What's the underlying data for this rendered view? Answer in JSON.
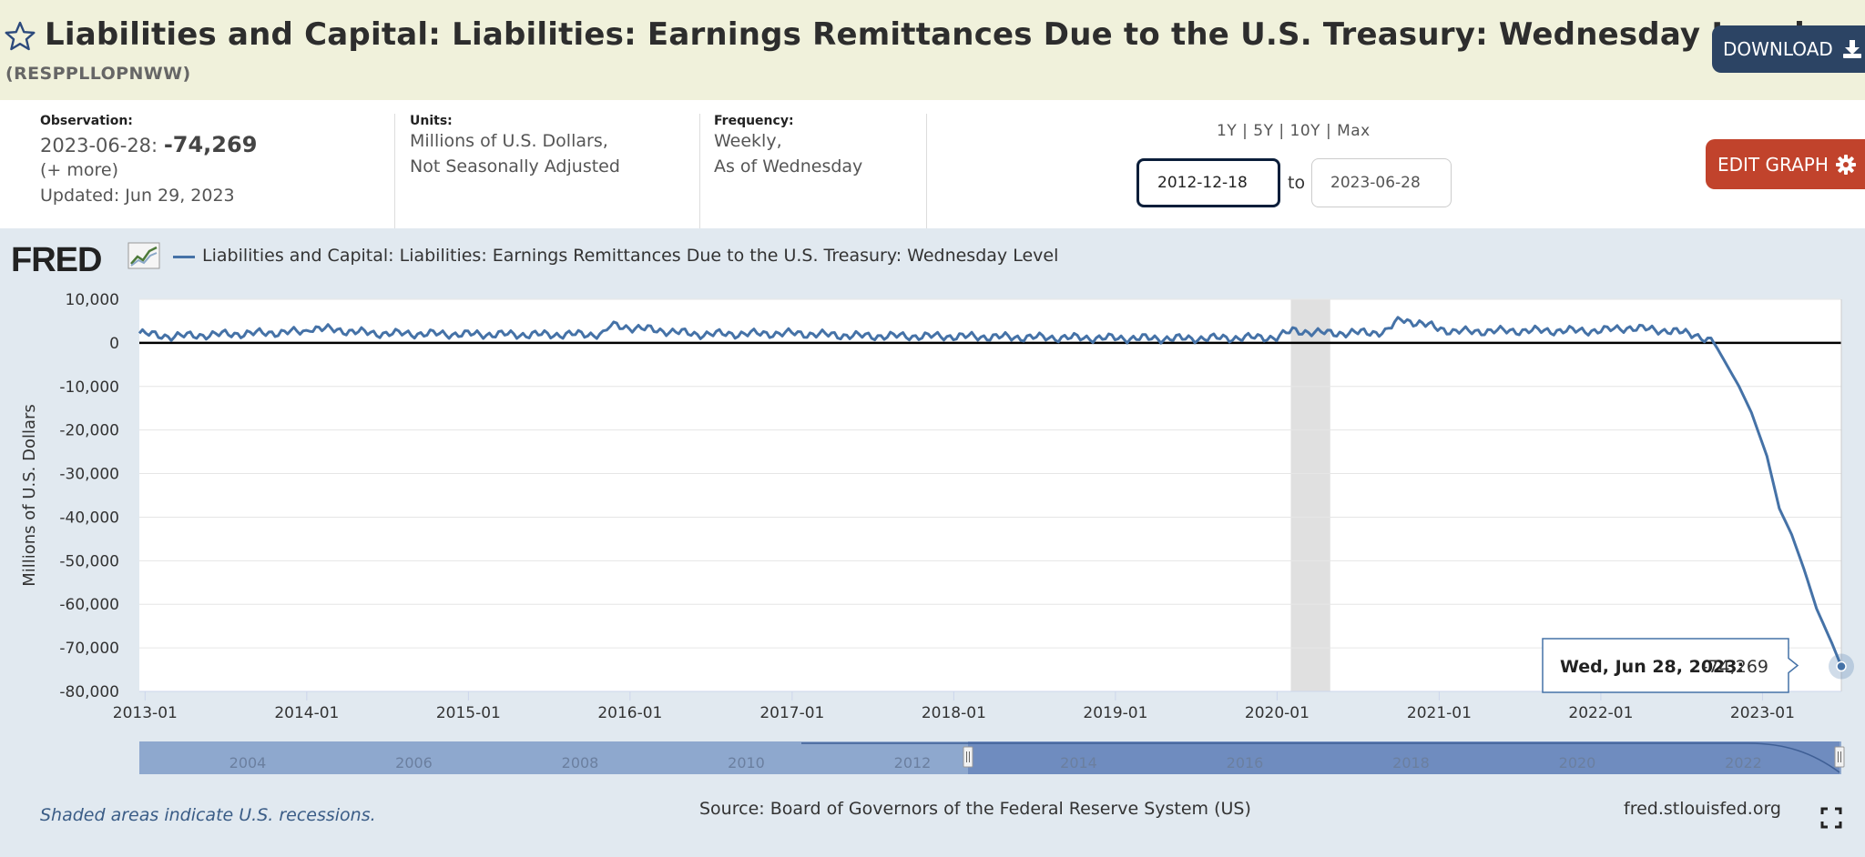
{
  "header": {
    "title": "Liabilities and Capital: Liabilities: Earnings Remittances Due to the U.S. Treasury: Wednesday Level",
    "series_id": "(RESPPLLOPNWW)",
    "download_label": "DOWNLOAD",
    "star_icon": "star-outline-icon",
    "download_icon": "download-icon"
  },
  "meta": {
    "observation_label": "Observation:",
    "observation_date": "2023-06-28:",
    "observation_value": "-74,269",
    "more_link": "(+ more)",
    "updated": "Updated: Jun 29, 2023",
    "units_label": "Units:",
    "units_line1": "Millions of U.S. Dollars,",
    "units_line2": "Not Seasonally Adjusted",
    "frequency_label": "Frequency:",
    "frequency_line1": "Weekly,",
    "frequency_line2": "As of Wednesday"
  },
  "controls": {
    "range_1y": "1Y",
    "range_5y": "5Y",
    "range_10y": "10Y",
    "range_max": "Max",
    "separator": "|",
    "start_date": "2012-12-18",
    "to_label": "to",
    "end_date": "2023-06-28",
    "edit_graph_label": "EDIT GRAPH",
    "gear_icon": "gear-icon"
  },
  "graph": {
    "logo": "FRED",
    "legend": "Liabilities and Capital: Liabilities: Earnings Remittances Due to the U.S. Treasury: Wednesday Level",
    "tooltip_date": "Wed, Jun 28, 2023:",
    "tooltip_value": "-74,269",
    "recession_note": "Shaded areas indicate U.S. recessions.",
    "source": "Source: Board of Governors of the Federal Reserve System (US)",
    "site": "fred.stlouisfed.org",
    "navigator_labels": [
      "2004",
      "2006",
      "2008",
      "2010",
      "2012",
      "2014",
      "2016",
      "2018",
      "2020",
      "2022"
    ],
    "line_color": "#4572a7",
    "recession_color": "#e0e0e0"
  },
  "chart_data": {
    "type": "line",
    "ylabel": "Millions of U.S. Dollars",
    "xlabel": "",
    "ylim": [
      -80000,
      10000
    ],
    "yticks": [
      "10,000",
      "0",
      "-10,000",
      "-20,000",
      "-30,000",
      "-40,000",
      "-50,000",
      "-60,000",
      "-70,000",
      "-80,000"
    ],
    "xticks": [
      "2013-01",
      "2014-01",
      "2015-01",
      "2016-01",
      "2017-01",
      "2018-01",
      "2019-01",
      "2020-01",
      "2021-01",
      "2022-01",
      "2023-01"
    ],
    "xrange": [
      "2012-12-19",
      "2023-06-28"
    ],
    "recessions": [
      [
        "2020-02-01",
        "2020-04-30"
      ]
    ],
    "series": [
      {
        "name": "Liabilities and Capital: Liabilities: Earnings Remittances Due to the U.S. Treasury: Wednesday Level",
        "points": [
          [
            "2012-12-19",
            2200
          ],
          [
            "2013-03-01",
            1500
          ],
          [
            "2013-07-01",
            2000
          ],
          [
            "2013-12-31",
            2600
          ],
          [
            "2014-01-08",
            3500
          ],
          [
            "2014-06-01",
            2200
          ],
          [
            "2014-12-31",
            2000
          ],
          [
            "2015-06-01",
            1900
          ],
          [
            "2015-11-01",
            2000
          ],
          [
            "2015-11-18",
            4000
          ],
          [
            "2016-06-01",
            2000
          ],
          [
            "2016-12-31",
            2200
          ],
          [
            "2017-06-01",
            1600
          ],
          [
            "2017-12-31",
            1500
          ],
          [
            "2018-06-01",
            1300
          ],
          [
            "2018-12-31",
            1100
          ],
          [
            "2019-06-01",
            1000
          ],
          [
            "2019-12-31",
            1300
          ],
          [
            "2020-02-05",
            2800
          ],
          [
            "2020-05-01",
            2200
          ],
          [
            "2020-09-01",
            2500
          ],
          [
            "2020-10-07",
            5500
          ],
          [
            "2021-02-01",
            2600
          ],
          [
            "2021-07-01",
            2800
          ],
          [
            "2022-01-01",
            2800
          ],
          [
            "2022-03-01",
            3500
          ],
          [
            "2022-06-01",
            2800
          ],
          [
            "2022-08-01",
            2000
          ],
          [
            "2022-09-14",
            0
          ],
          [
            "2022-10-12",
            -5000
          ],
          [
            "2022-11-09",
            -10000
          ],
          [
            "2022-12-07",
            -16000
          ],
          [
            "2023-01-11",
            -26000
          ],
          [
            "2023-02-08",
            -38000
          ],
          [
            "2023-03-08",
            -44000
          ],
          [
            "2023-04-05",
            -52000
          ],
          [
            "2023-05-03",
            -61000
          ],
          [
            "2023-06-07",
            -69000
          ],
          [
            "2023-06-28",
            -74269
          ]
        ]
      }
    ]
  }
}
